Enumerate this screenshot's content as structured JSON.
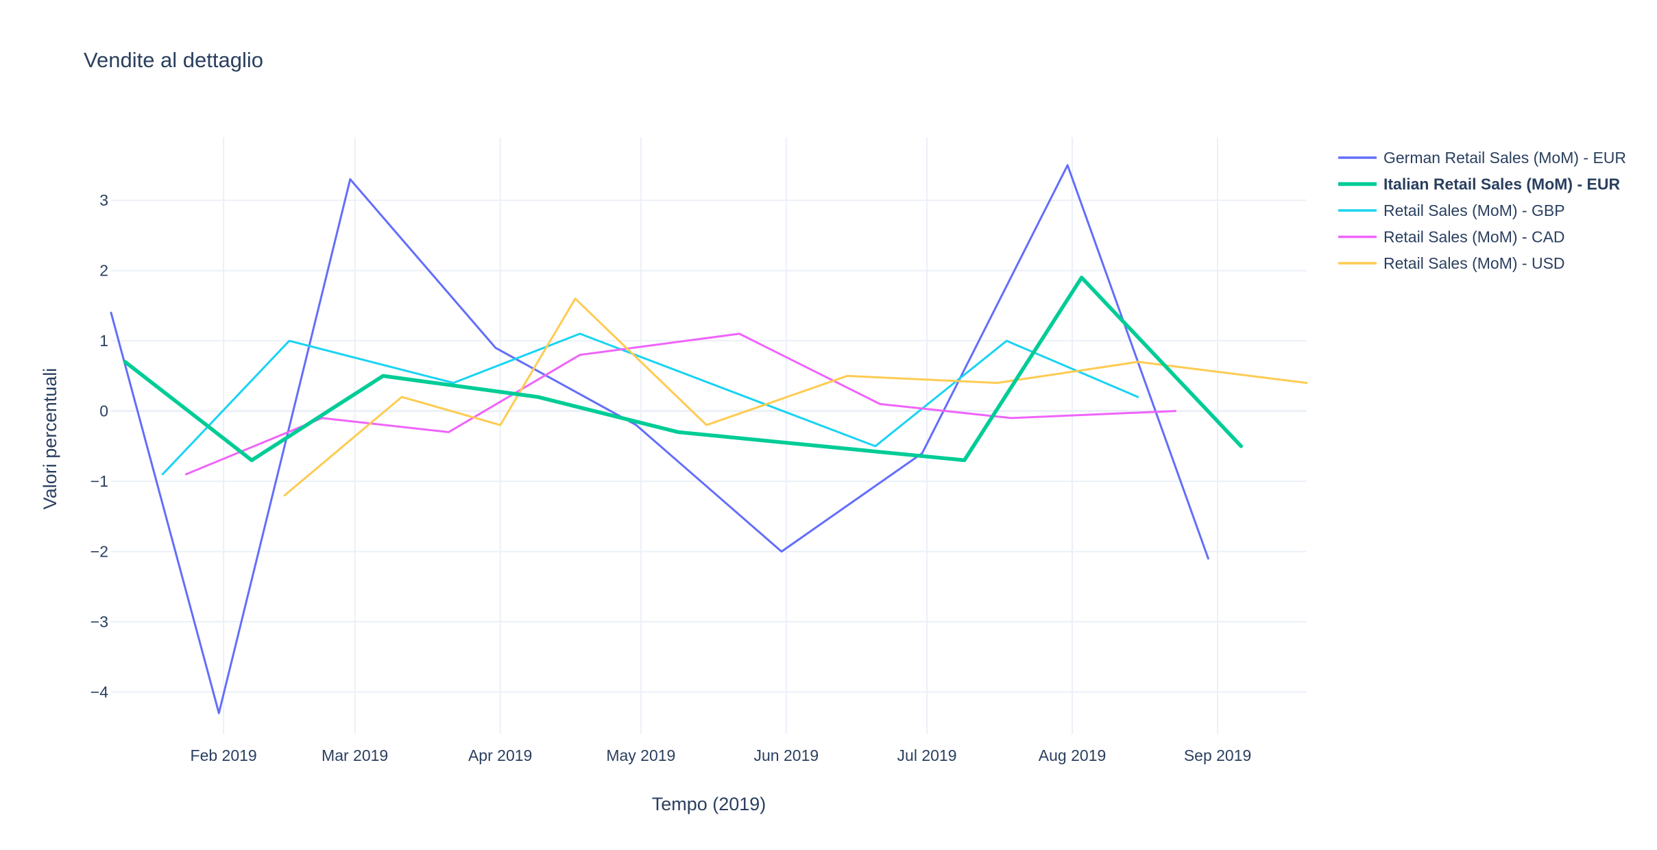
{
  "chart_data": {
    "type": "line",
    "title": "Vendite al dettaglio",
    "xlabel": "Tempo (2019)",
    "ylabel": "Valori percentuali",
    "xlim": [
      "2019-01-08",
      "2019-09-20"
    ],
    "ylim": [
      -4.6,
      3.9
    ],
    "grid": true,
    "legend_position": "top-right",
    "x_ticks": [
      {
        "date": "2019-02-01",
        "label": "Feb 2019"
      },
      {
        "date": "2019-03-01",
        "label": "Mar 2019"
      },
      {
        "date": "2019-04-01",
        "label": "Apr 2019"
      },
      {
        "date": "2019-05-01",
        "label": "May 2019"
      },
      {
        "date": "2019-06-01",
        "label": "Jun 2019"
      },
      {
        "date": "2019-07-01",
        "label": "Jul 2019"
      },
      {
        "date": "2019-08-01",
        "label": "Aug 2019"
      },
      {
        "date": "2019-09-01",
        "label": "Sep 2019"
      }
    ],
    "y_ticks": [
      {
        "value": 3,
        "label": "3"
      },
      {
        "value": 2,
        "label": "2"
      },
      {
        "value": 1,
        "label": "1"
      },
      {
        "value": 0,
        "label": "0"
      },
      {
        "value": -1,
        "label": "−1"
      },
      {
        "value": -2,
        "label": "−2"
      },
      {
        "value": -3,
        "label": "−3"
      },
      {
        "value": -4,
        "label": "−4"
      }
    ],
    "series": [
      {
        "name": "German Retail Sales (MoM) - EUR",
        "color": "#636efa",
        "highlighted": false,
        "points": [
          {
            "x": "2019-01-08",
            "y": 1.4
          },
          {
            "x": "2019-01-31",
            "y": -4.3
          },
          {
            "x": "2019-02-28",
            "y": 3.3
          },
          {
            "x": "2019-03-31",
            "y": 0.9
          },
          {
            "x": "2019-04-30",
            "y": -0.2
          },
          {
            "x": "2019-05-31",
            "y": -2.0
          },
          {
            "x": "2019-06-30",
            "y": -0.6
          },
          {
            "x": "2019-07-31",
            "y": 3.5
          },
          {
            "x": "2019-08-30",
            "y": -2.1
          }
        ]
      },
      {
        "name": "Italian Retail Sales (MoM) - EUR",
        "color": "#00cc96",
        "highlighted": true,
        "points": [
          {
            "x": "2019-01-11",
            "y": 0.7
          },
          {
            "x": "2019-02-07",
            "y": -0.7
          },
          {
            "x": "2019-03-07",
            "y": 0.5
          },
          {
            "x": "2019-04-09",
            "y": 0.2
          },
          {
            "x": "2019-05-09",
            "y": -0.3
          },
          {
            "x": "2019-07-09",
            "y": -0.7
          },
          {
            "x": "2019-08-03",
            "y": 1.9
          },
          {
            "x": "2019-09-06",
            "y": -0.5
          }
        ]
      },
      {
        "name": "Retail Sales (MoM) - GBP",
        "color": "#19d3f3",
        "highlighted": false,
        "points": [
          {
            "x": "2019-01-19",
            "y": -0.9
          },
          {
            "x": "2019-02-15",
            "y": 1.0
          },
          {
            "x": "2019-03-22",
            "y": 0.4
          },
          {
            "x": "2019-04-18",
            "y": 1.1
          },
          {
            "x": "2019-06-20",
            "y": -0.5
          },
          {
            "x": "2019-07-18",
            "y": 1.0
          },
          {
            "x": "2019-08-15",
            "y": 0.2
          }
        ]
      },
      {
        "name": "Retail Sales (MoM) - CAD",
        "color": "#ef64fa",
        "highlighted": false,
        "points": [
          {
            "x": "2019-01-24",
            "y": -0.9
          },
          {
            "x": "2019-02-22",
            "y": -0.1
          },
          {
            "x": "2019-03-21",
            "y": -0.3
          },
          {
            "x": "2019-04-18",
            "y": 0.8
          },
          {
            "x": "2019-05-22",
            "y": 1.1
          },
          {
            "x": "2019-06-21",
            "y": 0.1
          },
          {
            "x": "2019-07-19",
            "y": -0.1
          },
          {
            "x": "2019-08-23",
            "y": 0.0
          }
        ]
      },
      {
        "name": "Retail Sales (MoM) - USD",
        "color": "#fecb52",
        "highlighted": false,
        "points": [
          {
            "x": "2019-02-14",
            "y": -1.2
          },
          {
            "x": "2019-03-11",
            "y": 0.2
          },
          {
            "x": "2019-04-01",
            "y": -0.2
          },
          {
            "x": "2019-04-17",
            "y": 1.6
          },
          {
            "x": "2019-05-15",
            "y": -0.2
          },
          {
            "x": "2019-06-14",
            "y": 0.5
          },
          {
            "x": "2019-07-16",
            "y": 0.4
          },
          {
            "x": "2019-08-15",
            "y": 0.7
          },
          {
            "x": "2019-09-20",
            "y": 0.4
          }
        ]
      }
    ]
  }
}
